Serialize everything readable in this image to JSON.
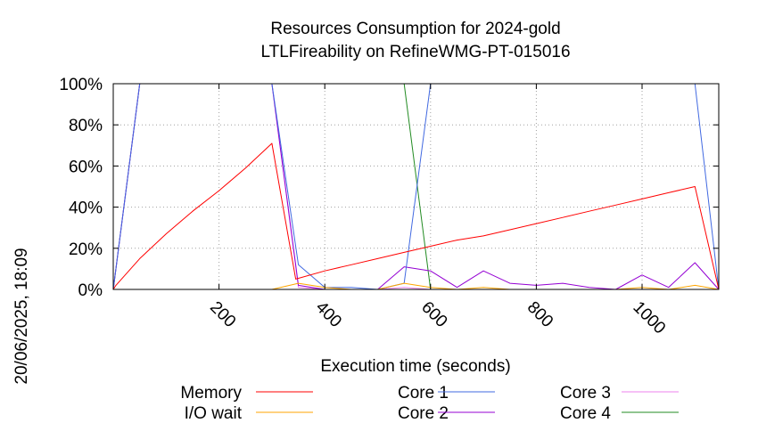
{
  "chart_data": {
    "type": "line",
    "title": "Resources Consumption for 2024-gold",
    "subtitle": "LTLFireability on RefineWMG-PT-015016",
    "xlabel": "Execution time (seconds)",
    "ylabel": "",
    "side_label": "20/06/2025, 18:09",
    "xlim": [
      0,
      1145
    ],
    "ylim": [
      0,
      100
    ],
    "xticks": [
      200,
      400,
      600,
      800,
      1000
    ],
    "xtick_labels": [
      "200",
      "400",
      "600",
      "800",
      "1000"
    ],
    "yticks": [
      0,
      20,
      40,
      60,
      80,
      100
    ],
    "ytick_labels": [
      "0%",
      "20%",
      "40%",
      "60%",
      "80%",
      "100%"
    ],
    "grid": true,
    "legend_position": "bottom",
    "series": [
      {
        "name": "Memory",
        "color": "#ff0000",
        "x": [
          0,
          5,
          50,
          100,
          150,
          200,
          250,
          300,
          345,
          400,
          450,
          500,
          550,
          600,
          650,
          700,
          750,
          800,
          850,
          900,
          950,
          1000,
          1050,
          1100,
          1145
        ],
        "y": [
          0,
          2,
          15,
          27,
          38,
          48,
          59,
          71,
          5,
          9,
          12,
          15,
          18,
          21,
          24,
          26,
          29,
          32,
          35,
          38,
          41,
          44,
          47,
          50,
          0
        ]
      },
      {
        "name": "I/O wait",
        "color": "#ffa500",
        "x": [
          0,
          50,
          100,
          150,
          200,
          250,
          300,
          350,
          400,
          450,
          500,
          550,
          600,
          650,
          700,
          750,
          800,
          850,
          900,
          950,
          1000,
          1050,
          1100,
          1145
        ],
        "y": [
          0,
          0,
          0,
          0,
          0,
          0,
          0,
          3,
          1,
          0,
          0,
          3,
          1,
          0,
          1,
          0,
          0,
          0,
          0,
          0,
          1,
          0,
          2,
          0
        ]
      },
      {
        "name": "Core 1",
        "color": "#4169e1",
        "x": [
          0,
          50,
          100,
          150,
          200,
          250,
          300,
          350,
          400,
          450,
          500,
          550,
          600,
          650,
          700,
          750,
          800,
          850,
          900,
          950,
          1000,
          1050,
          1100,
          1145
        ],
        "y": [
          0,
          100,
          100,
          100,
          100,
          100,
          100,
          12,
          1,
          1,
          0,
          3,
          100,
          100,
          100,
          100,
          100,
          100,
          100,
          100,
          100,
          100,
          100,
          0
        ]
      },
      {
        "name": "Core 2",
        "color": "#9400d3",
        "x": [
          0,
          50,
          100,
          150,
          200,
          250,
          300,
          350,
          400,
          450,
          500,
          550,
          600,
          650,
          700,
          750,
          800,
          850,
          900,
          950,
          1000,
          1050,
          1100,
          1145
        ],
        "y": [
          0,
          100,
          100,
          100,
          100,
          100,
          100,
          2,
          0,
          0,
          0,
          11,
          9,
          1,
          9,
          3,
          2,
          3,
          1,
          0,
          7,
          1,
          13,
          0
        ]
      },
      {
        "name": "Core 3",
        "color": "#ee82ee",
        "x": [
          0,
          50,
          100,
          150,
          200,
          250,
          300,
          350,
          400,
          450,
          500,
          550,
          600,
          650,
          700,
          750,
          800,
          850,
          900,
          950,
          1000,
          1050,
          1100,
          1145
        ],
        "y": [
          0,
          100,
          100,
          100,
          100,
          100,
          100,
          1,
          0,
          0,
          0,
          1,
          0,
          0,
          0,
          0,
          0,
          0,
          0,
          0,
          0,
          0,
          0,
          0
        ]
      },
      {
        "name": "Core 4",
        "color": "#228b22",
        "x": [
          0,
          50,
          100,
          150,
          200,
          250,
          300,
          350,
          400,
          450,
          500,
          550,
          600,
          650,
          700,
          750,
          800,
          850,
          900,
          950,
          1000,
          1050,
          1100,
          1145
        ],
        "y": [
          0,
          100,
          100,
          100,
          100,
          100,
          100,
          100,
          100,
          100,
          100,
          100,
          0,
          0,
          0,
          0,
          0,
          0,
          0,
          0,
          0,
          0,
          0,
          0
        ]
      }
    ]
  }
}
